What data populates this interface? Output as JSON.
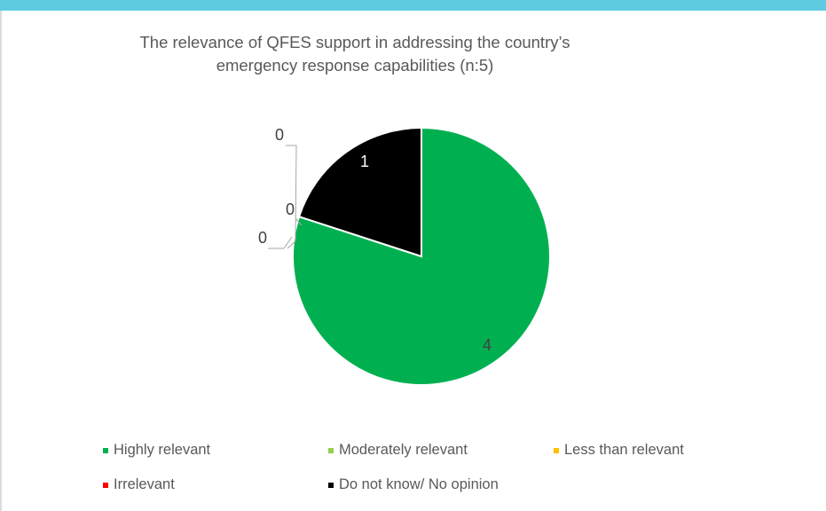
{
  "colors": {
    "top_band": "#5ecbe0",
    "highly_relevant": "#00b050",
    "moderately_relevant": "#92d050",
    "less_than_relevant": "#ffc000",
    "irrelevant": "#ff0000",
    "do_not_know": "#000000"
  },
  "chart_data": {
    "type": "pie",
    "title": "The relevance of QFES support in addressing the country’s emergency response capabilities (n:5)",
    "title_lines": [
      "The relevance of QFES support in addressing the country’s",
      "emergency response capabilities (n:5)"
    ],
    "legend_position": "bottom",
    "slices": [
      {
        "label": "Highly relevant",
        "value": 4,
        "display": "4",
        "color": "#00b050"
      },
      {
        "label": "Moderately relevant",
        "value": 0,
        "display": "0",
        "color": "#92d050"
      },
      {
        "label": "Less than relevant",
        "value": 0,
        "display": "0",
        "color": "#ffc000"
      },
      {
        "label": "Irrelevant",
        "value": 0,
        "display": "0",
        "color": "#ff0000"
      },
      {
        "label": "Do not know/ No opinion",
        "value": 1,
        "display": "1",
        "color": "#000000"
      }
    ]
  }
}
